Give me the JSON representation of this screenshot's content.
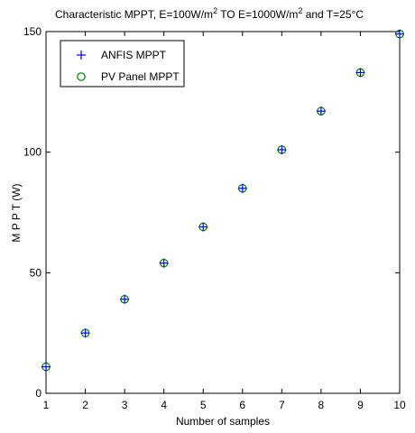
{
  "chart_data": {
    "type": "scatter",
    "title": {
      "p1": "Characteristic MPPT, E=100W/m",
      "sup1": "2",
      "p2": " TO E=1000W/m",
      "sup2": "2",
      "p3": " and T=25°C"
    },
    "xlabel": "Number of samples",
    "ylabel": "M P P T  (W)",
    "xlim": [
      1,
      10
    ],
    "ylim": [
      0,
      150
    ],
    "xticks": [
      1,
      2,
      3,
      4,
      5,
      6,
      7,
      8,
      9,
      10
    ],
    "yticks": [
      0,
      50,
      100,
      150
    ],
    "grid": false,
    "legend_position": "top-left",
    "x": [
      1,
      2,
      3,
      4,
      5,
      6,
      7,
      8,
      9,
      10
    ],
    "series": [
      {
        "name": "ANFIS MPPT",
        "marker": "plus",
        "color": "#0000ff",
        "values": [
          11,
          25,
          39,
          54,
          69,
          85,
          101,
          117,
          133,
          149
        ]
      },
      {
        "name": "PV Panel MPPT",
        "marker": "circle",
        "color": "#008000",
        "values": [
          11,
          25,
          39,
          54,
          69,
          85,
          101,
          117,
          133,
          149
        ]
      }
    ]
  }
}
